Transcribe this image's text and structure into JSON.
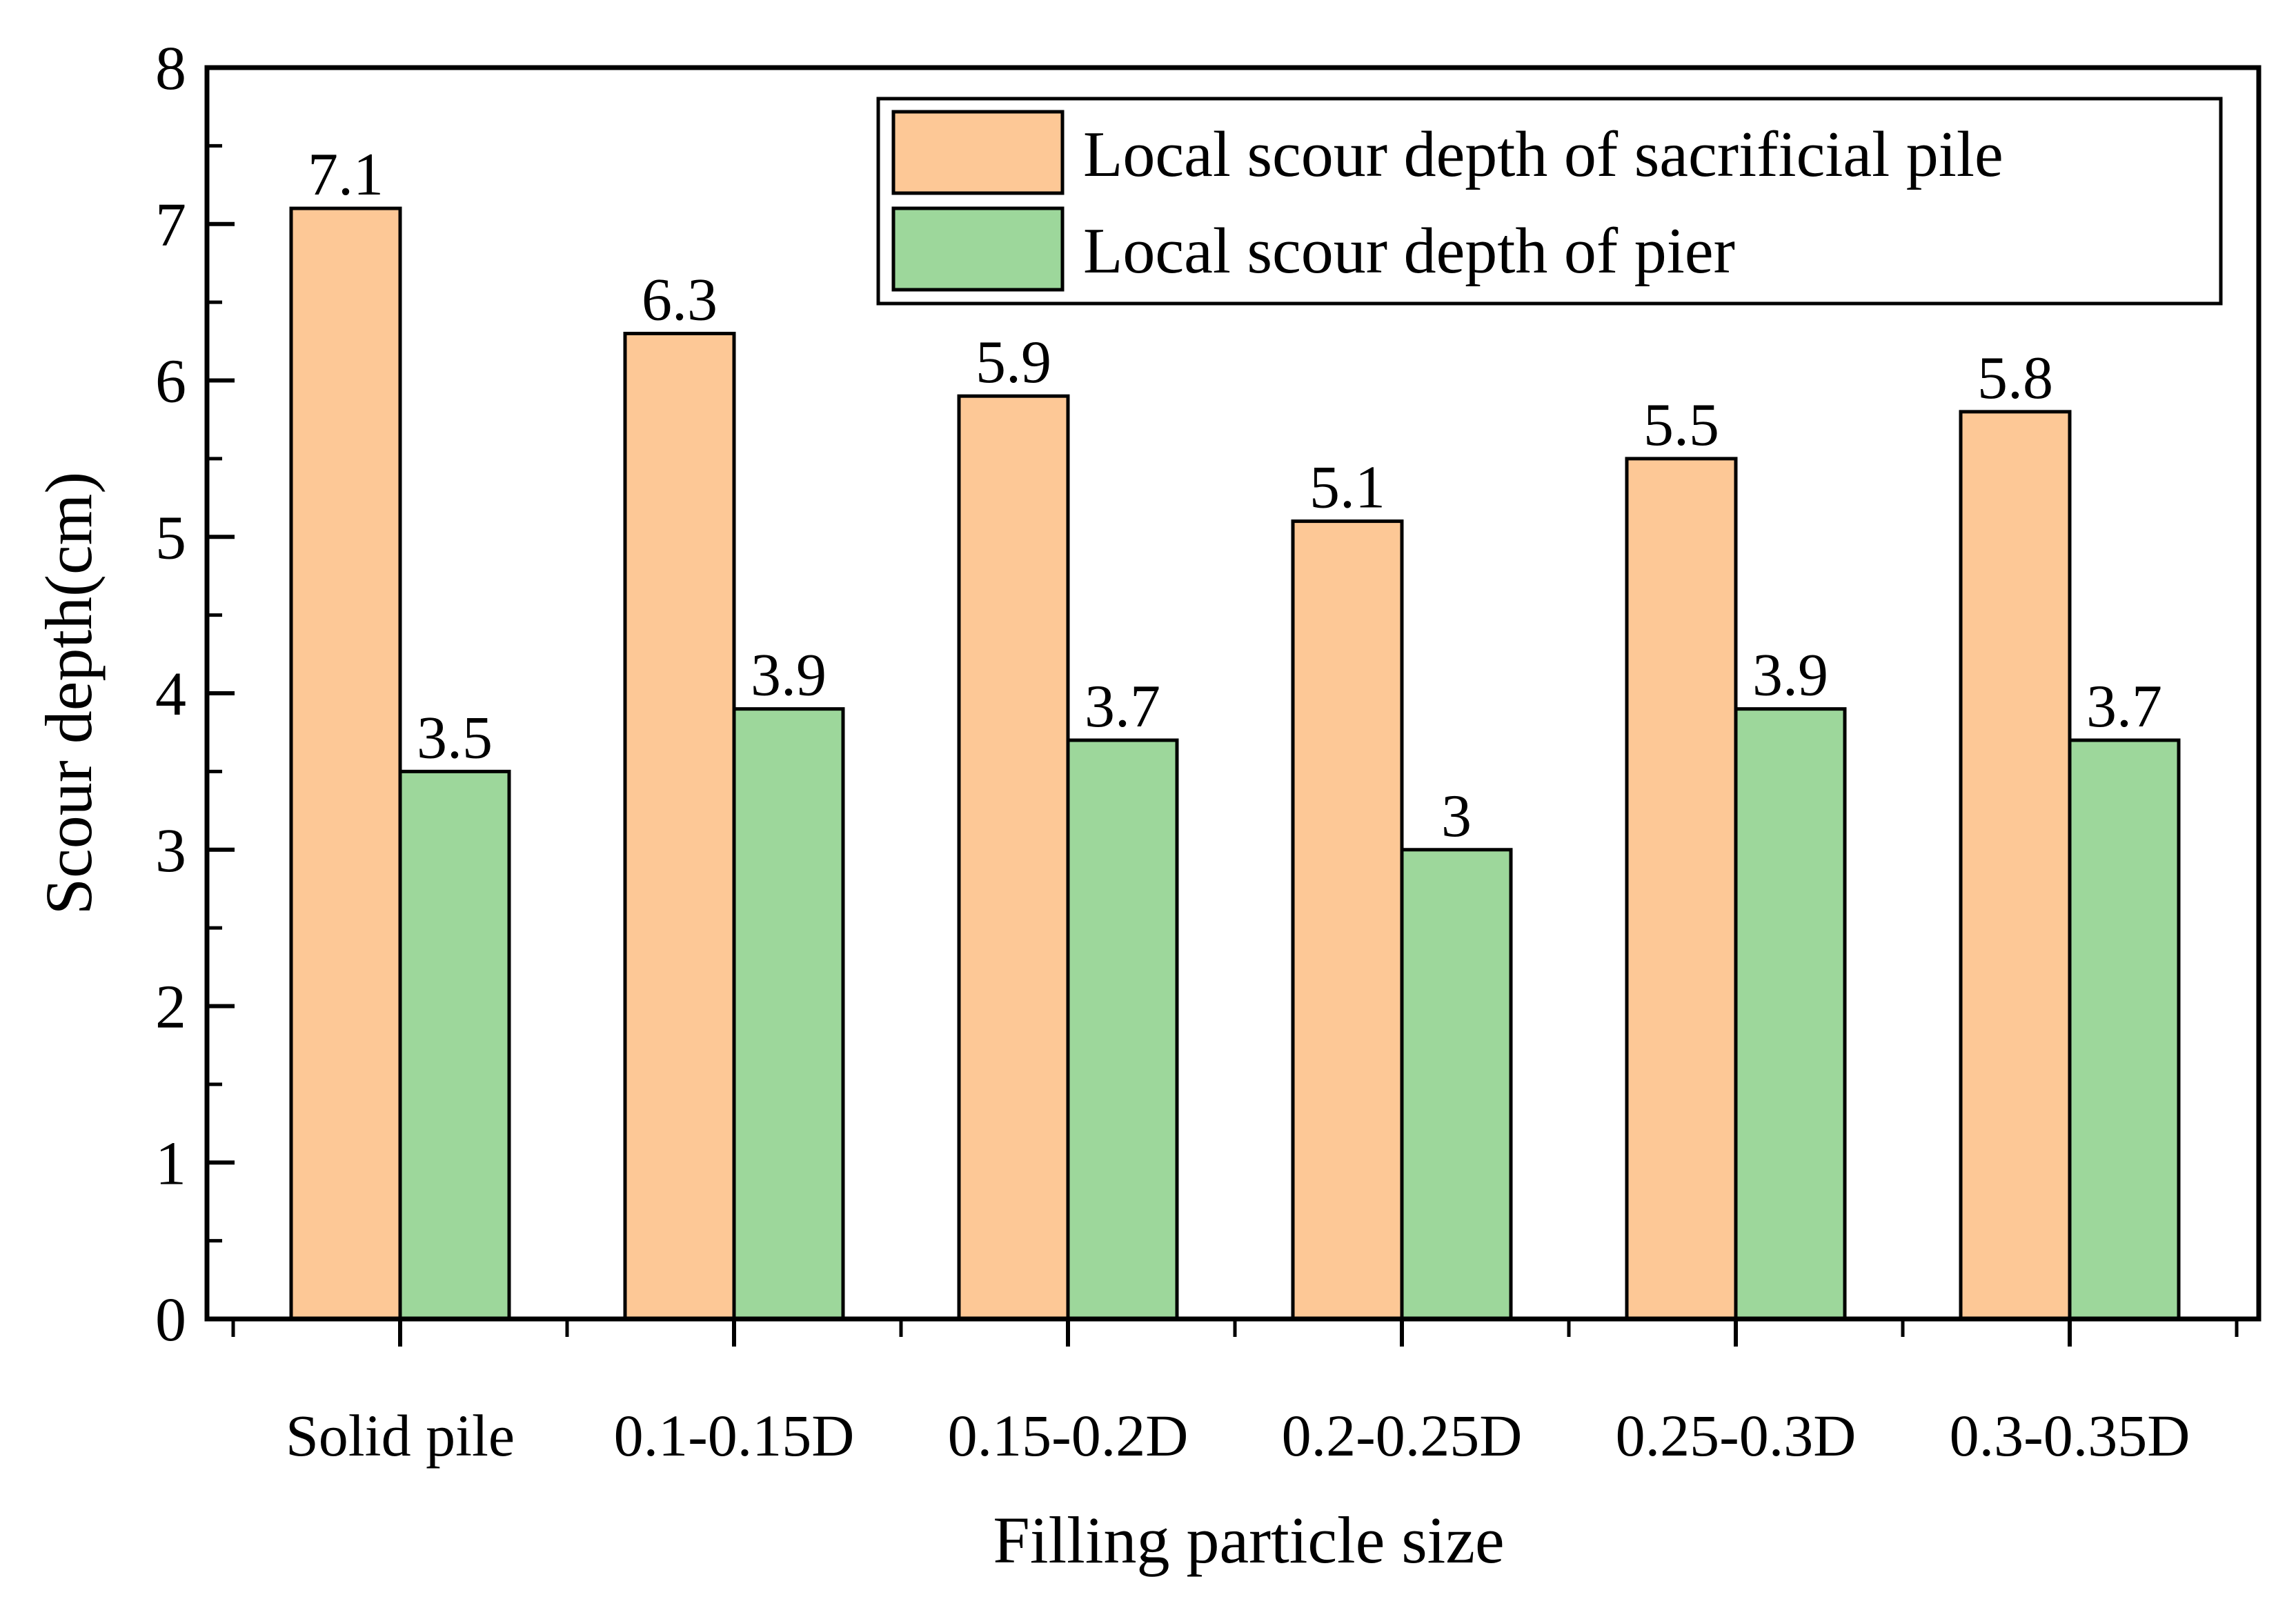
{
  "chart_data": {
    "type": "bar",
    "title": "",
    "xlabel": "Filling particle size",
    "ylabel": "Scour depth(cm)",
    "ylim": [
      0,
      8
    ],
    "yticks": [
      "0",
      "1",
      "2",
      "3",
      "4",
      "5",
      "6",
      "7",
      "8"
    ],
    "categories": [
      "Solid pile",
      "0.1-0.15D",
      "0.15-0.2D",
      "0.2-0.25D",
      "0.25-0.3D",
      "0.3-0.35D"
    ],
    "series": [
      {
        "name": "Local scour depth of sacrificial pile",
        "color": "#FDC896",
        "values": [
          7.1,
          6.3,
          5.9,
          5.1,
          5.5,
          5.8
        ],
        "labels": [
          "7.1",
          "6.3",
          "5.9",
          "5.1",
          "5.5",
          "5.8"
        ]
      },
      {
        "name": "Local scour depth of pier",
        "color": "#9DD79B",
        "values": [
          3.5,
          3.9,
          3.7,
          3.0,
          3.9,
          3.7
        ],
        "labels": [
          "3.5",
          "3.9",
          "3.7",
          "3",
          "3.9",
          "3.7"
        ]
      }
    ],
    "legend": "top-right",
    "grid": false
  }
}
